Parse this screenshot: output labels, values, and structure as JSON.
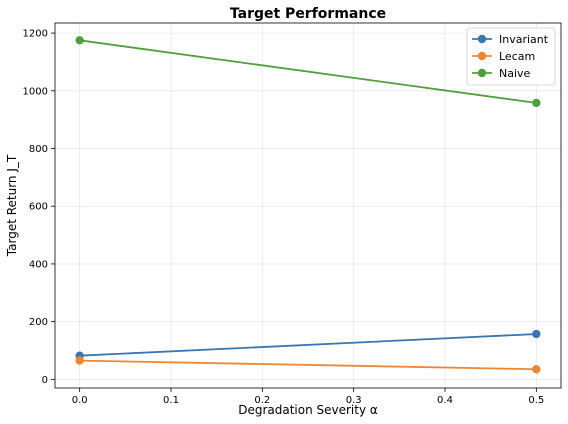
{
  "chart_data": {
    "type": "line",
    "title": "Target Performance",
    "xlabel": "Degradation Severity α",
    "ylabel": "Target Return J_T",
    "xlim": [
      -0.027,
      0.527
    ],
    "ylim": [
      -30,
      1235
    ],
    "xticks": [
      0.0,
      0.1,
      0.2,
      0.3,
      0.4,
      0.5
    ],
    "xtick_labels": [
      "0.0",
      "0.1",
      "0.2",
      "0.3",
      "0.4",
      "0.5"
    ],
    "yticks": [
      0,
      200,
      400,
      600,
      800,
      1000,
      1200
    ],
    "ytick_labels": [
      "0",
      "200",
      "400",
      "600",
      "800",
      "1000",
      "1200"
    ],
    "grid": true,
    "legend_position": "top-right",
    "x": [
      0.0,
      0.5
    ],
    "series": [
      {
        "name": "Invariant",
        "values": [
          82,
          157
        ],
        "color": "#3a76af"
      },
      {
        "name": "Lecam",
        "values": [
          65,
          35
        ],
        "color": "#ef8636"
      },
      {
        "name": "Naive",
        "values": [
          1175,
          958
        ],
        "color": "#519e3e"
      }
    ]
  }
}
